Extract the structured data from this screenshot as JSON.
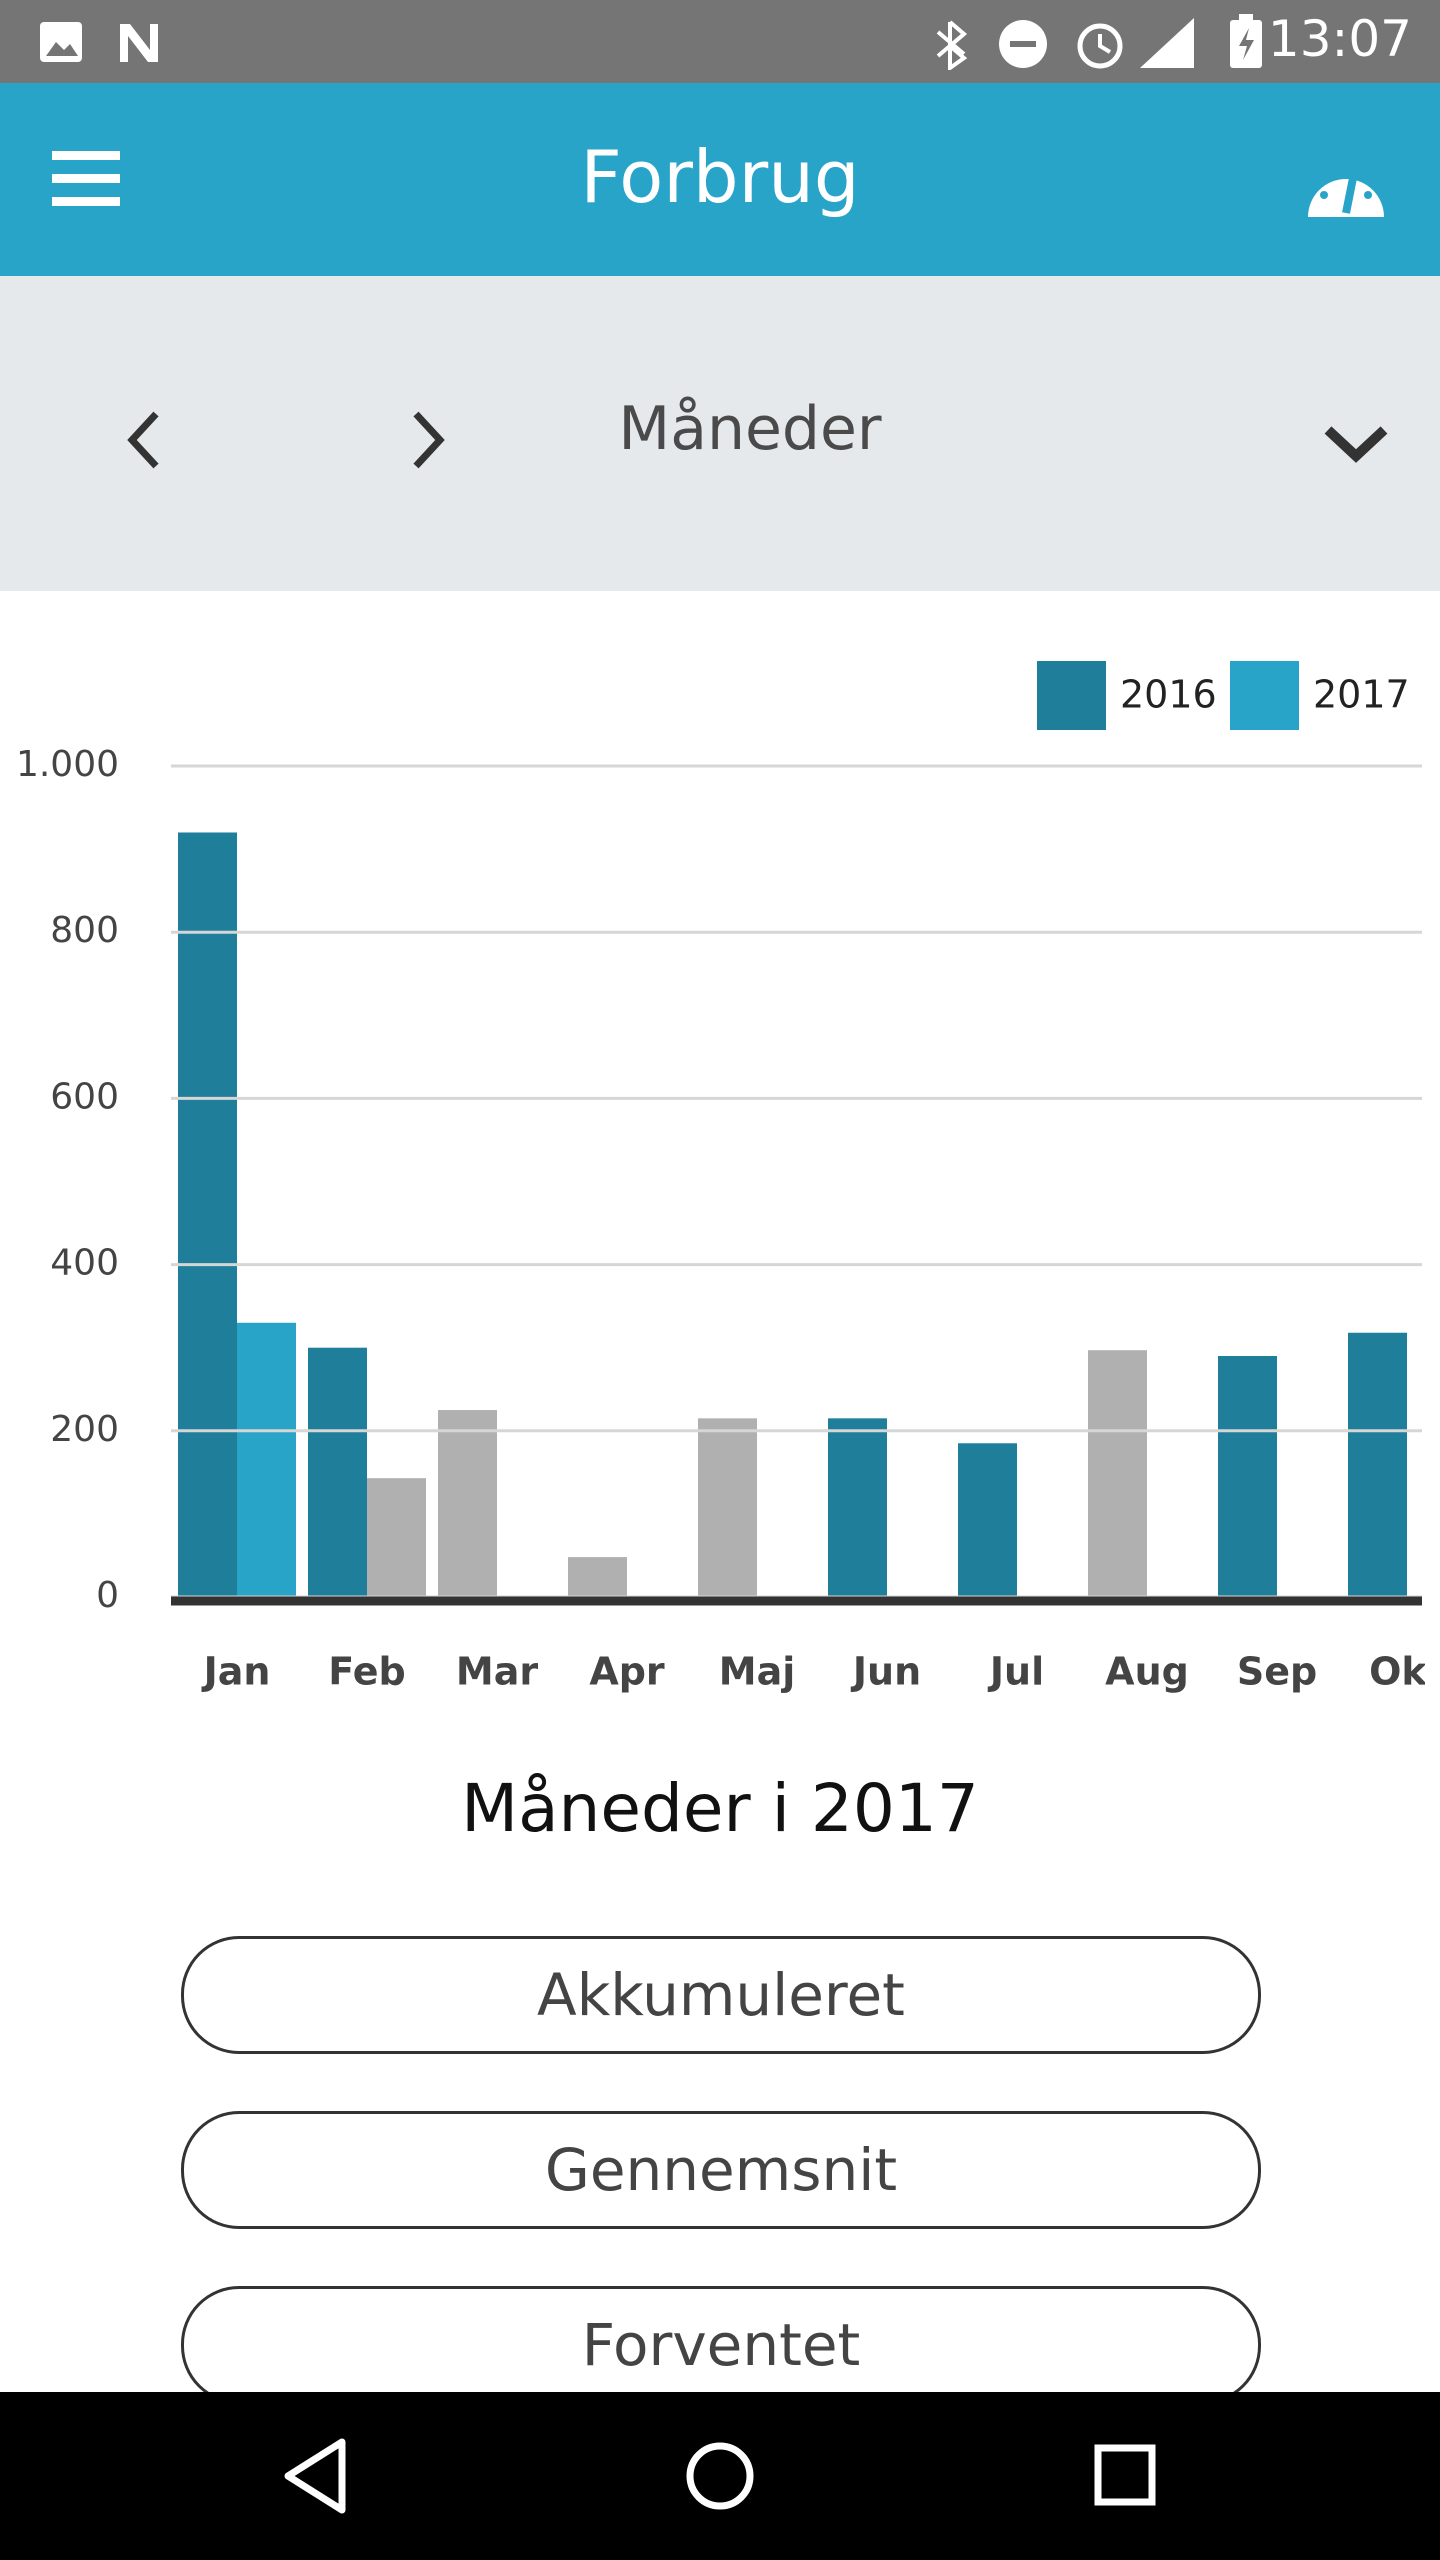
{
  "status_bar": {
    "time": "13:07"
  },
  "header": {
    "title": "Forbrug"
  },
  "period_selector": {
    "label": "Måneder"
  },
  "chart_data": {
    "type": "bar",
    "categories": [
      "Jan",
      "Feb",
      "Mar",
      "Apr",
      "Maj",
      "Jun",
      "Jul",
      "Aug",
      "Sep",
      "Okt"
    ],
    "series": [
      {
        "name": "2016",
        "color": "#1f7f9a",
        "values": [
          920,
          300,
          225,
          48,
          215,
          215,
          185,
          297,
          290,
          318
        ],
        "point_colors": [
          "#1f7f9a",
          "#1f7f9a",
          "#b0b0b0",
          "#b0b0b0",
          "#b0b0b0",
          "#1f7f9a",
          "#1f7f9a",
          "#b0b0b0",
          "#1f7f9a",
          "#1f7f9a"
        ]
      },
      {
        "name": "2017",
        "color": "#28a4c9",
        "values": [
          330,
          143,
          null,
          null,
          null,
          null,
          null,
          null,
          null,
          null
        ],
        "point_colors": [
          "#28a4c9",
          "#b0b0b0",
          null,
          null,
          null,
          null,
          null,
          null,
          null,
          null
        ]
      }
    ],
    "ylim": [
      0,
      1000
    ],
    "yticks": [
      0,
      200,
      400,
      600,
      800,
      {
        "value": 1000,
        "label": "1.000"
      }
    ],
    "grid": true,
    "legend": "top-right"
  },
  "caption": "Måneder i 2017",
  "buttons": [
    "Akkumuleret",
    "Gennemsnit",
    "Forventet"
  ]
}
